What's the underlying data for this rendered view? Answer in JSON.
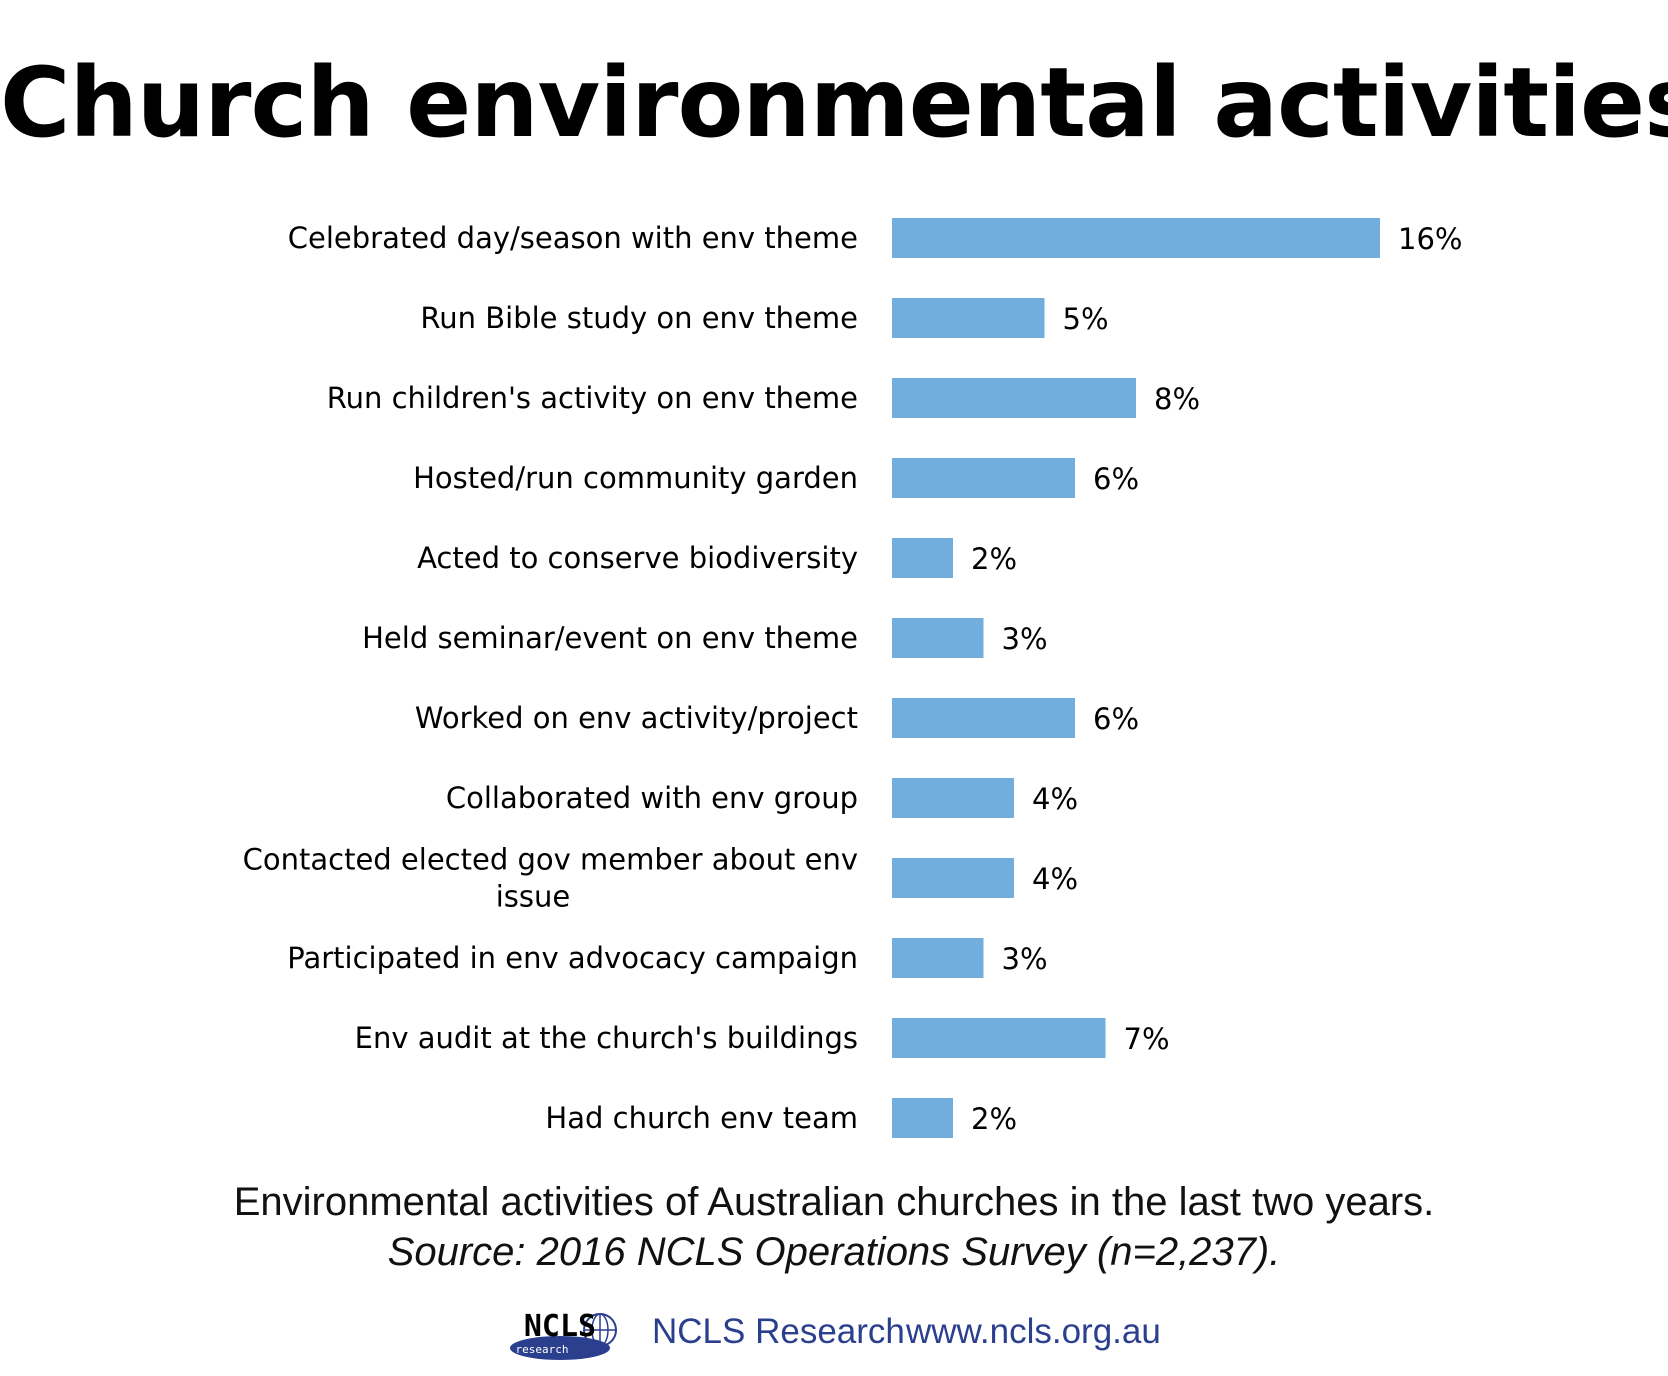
{
  "chart_data": {
    "type": "bar",
    "orientation": "horizontal",
    "title": "Church environmental activities",
    "categories": [
      "Celebrated day/season with env theme",
      "Run Bible study on env theme",
      "Run children's activity on env theme",
      "Hosted/run community garden",
      "Acted to conserve biodiversity",
      "Held seminar/event on env theme",
      "Worked on env activity/project",
      "Collaborated with env group",
      "Contacted elected gov member about env issue",
      "Participated in env advocacy campaign",
      "Env audit at the church's buildings",
      "Had church env team"
    ],
    "values": [
      16,
      5,
      8,
      6,
      2,
      3,
      6,
      4,
      4,
      3,
      7,
      2
    ],
    "value_labels": [
      "16%",
      "5%",
      "8%",
      "6%",
      "2%",
      "3%",
      "6%",
      "4%",
      "4%",
      "3%",
      "7%",
      "2%"
    ],
    "unit": "%",
    "bar_color": "#72aedd",
    "grid": false,
    "legend": "none"
  },
  "caption": {
    "description": "Environmental activities of Australian churches in the last two years.",
    "source": "Source: 2016 NCLS Operations Survey (n=2,237)."
  },
  "footer": {
    "logo_text": "NCLS",
    "logo_subtext": "research",
    "org_name": "NCLS Research",
    "url": "www.ncls.org.au",
    "brand_color": "#2b3f8f"
  }
}
